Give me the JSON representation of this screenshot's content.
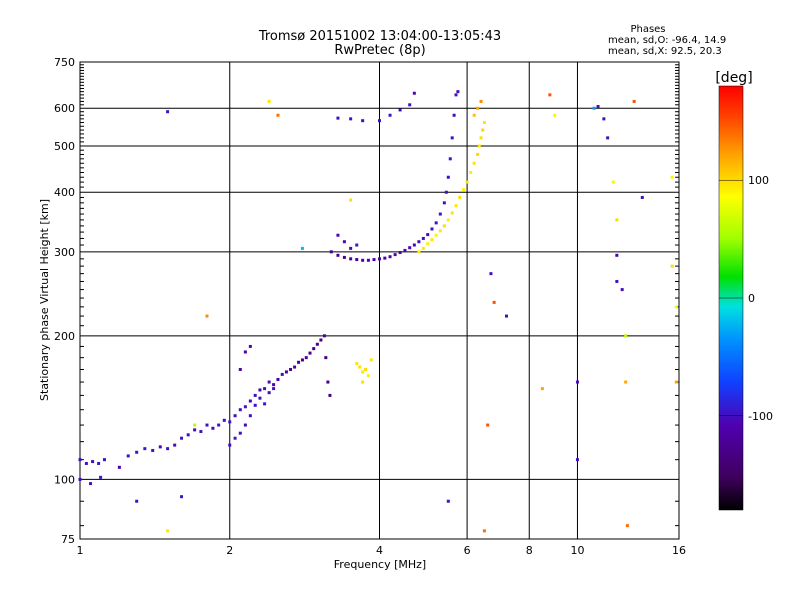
{
  "title": {
    "line1": "Tromsø 20151002 13:04:00-13:05:43",
    "line2": "RwPretec (8p)"
  },
  "stats": {
    "heading": "Phases",
    "line_o": "mean, sd,O: -96.4, 14.9",
    "line_x": "mean, sd,X:  92.5, 20.3"
  },
  "colorbar": {
    "label": "[deg]",
    "ticks": [
      {
        "value": 100,
        "label": "100"
      },
      {
        "value": 0,
        "label": "0"
      },
      {
        "value": -100,
        "label": "-100"
      }
    ],
    "range": [
      -180,
      180
    ]
  },
  "chart_data": {
    "type": "scatter",
    "title": "Tromsø 20151002 13:04:00-13:05:43",
    "subtitle": "RwPretec (8p)",
    "xlabel": "Frequency [MHz]",
    "ylabel": "Stationary phase Virtual Height [km]",
    "xscale": "log",
    "yscale": "log",
    "xlim": [
      1,
      16
    ],
    "ylim": [
      75,
      750
    ],
    "xticks": [
      {
        "value": 1,
        "label": "1"
      },
      {
        "value": 2,
        "label": "2"
      },
      {
        "value": 4,
        "label": "4"
      },
      {
        "value": 6,
        "label": "6"
      },
      {
        "value": 8,
        "label": "8"
      },
      {
        "value": 10,
        "label": "10"
      },
      {
        "value": 16,
        "label": "16"
      }
    ],
    "yticks": [
      {
        "value": 75,
        "label": "75"
      },
      {
        "value": 100,
        "label": "100"
      },
      {
        "value": 200,
        "label": "200"
      },
      {
        "value": 300,
        "label": "300"
      },
      {
        "value": 400,
        "label": "400"
      },
      {
        "value": 500,
        "label": "500"
      },
      {
        "value": 600,
        "label": "600"
      },
      {
        "value": 750,
        "label": "750"
      }
    ],
    "grid": true,
    "color_by": "phase [deg]",
    "series": [
      {
        "points": [
          [
            1.0,
            110,
            -100
          ],
          [
            1.03,
            108,
            -98
          ],
          [
            1.06,
            109,
            -102
          ],
          [
            1.09,
            108,
            -96
          ],
          [
            1.12,
            110,
            -100
          ],
          [
            1.0,
            100,
            -104
          ],
          [
            1.05,
            98,
            -100
          ],
          [
            1.1,
            101,
            -96
          ],
          [
            1.2,
            106,
            -110
          ],
          [
            1.25,
            112,
            -100
          ],
          [
            1.3,
            114,
            -98
          ],
          [
            1.35,
            116,
            -96
          ],
          [
            1.4,
            115,
            -100
          ],
          [
            1.45,
            117,
            -104
          ],
          [
            1.5,
            116,
            -98
          ],
          [
            1.55,
            118,
            -100
          ],
          [
            1.6,
            122,
            -96
          ],
          [
            1.65,
            124,
            -100
          ],
          [
            1.7,
            127,
            -102
          ],
          [
            1.75,
            126,
            -98
          ],
          [
            1.8,
            130,
            -100
          ],
          [
            1.85,
            128,
            -104
          ],
          [
            1.9,
            130,
            -96
          ],
          [
            1.95,
            133,
            -100
          ],
          [
            2.0,
            132,
            -98
          ],
          [
            2.05,
            136,
            -102
          ],
          [
            2.1,
            140,
            -100
          ],
          [
            2.15,
            142,
            -96
          ],
          [
            2.2,
            146,
            -104
          ],
          [
            2.25,
            150,
            -100
          ],
          [
            2.3,
            154,
            -112
          ],
          [
            2.35,
            155,
            -98
          ],
          [
            2.4,
            160,
            -104
          ],
          [
            2.45,
            158,
            -110
          ],
          [
            2.5,
            162,
            -118
          ],
          [
            2.55,
            166,
            -100
          ],
          [
            2.6,
            168,
            -114
          ],
          [
            2.65,
            170,
            -122
          ],
          [
            2.7,
            172,
            -110
          ],
          [
            2.75,
            176,
            -124
          ],
          [
            2.8,
            178,
            -130
          ],
          [
            2.85,
            180,
            -116
          ],
          [
            2.9,
            184,
            -128
          ],
          [
            2.95,
            188,
            -134
          ],
          [
            3.0,
            192,
            -120
          ],
          [
            3.05,
            196,
            -132
          ],
          [
            3.1,
            200,
            -118
          ],
          [
            3.12,
            180,
            -136
          ],
          [
            3.15,
            160,
            -130
          ],
          [
            3.18,
            150,
            -132
          ],
          [
            2.0,
            118,
            -100
          ],
          [
            2.05,
            122,
            -96
          ],
          [
            2.1,
            125,
            -100
          ],
          [
            2.15,
            130,
            -104
          ],
          [
            2.2,
            136,
            -100
          ],
          [
            2.25,
            143,
            -98
          ],
          [
            2.3,
            148,
            -100
          ],
          [
            2.35,
            144,
            -96
          ],
          [
            2.4,
            152,
            -102
          ],
          [
            2.45,
            155,
            -100
          ],
          [
            2.1,
            170,
            -110
          ],
          [
            2.15,
            185,
            -108
          ],
          [
            2.2,
            190,
            -104
          ],
          [
            3.2,
            300,
            -130
          ],
          [
            3.3,
            295,
            -128
          ],
          [
            3.4,
            292,
            -124
          ],
          [
            3.5,
            290,
            -120
          ],
          [
            3.6,
            289,
            -116
          ],
          [
            3.7,
            288,
            -118
          ],
          [
            3.8,
            288,
            -114
          ],
          [
            3.9,
            289,
            -112
          ],
          [
            4.0,
            290,
            -110
          ],
          [
            4.1,
            291,
            -112
          ],
          [
            4.2,
            293,
            -108
          ],
          [
            4.3,
            296,
            -106
          ],
          [
            4.4,
            299,
            -110
          ],
          [
            4.5,
            302,
            -104
          ],
          [
            4.6,
            306,
            -108
          ],
          [
            4.7,
            310,
            -104
          ],
          [
            4.8,
            315,
            -100
          ],
          [
            4.9,
            320,
            -102
          ],
          [
            5.0,
            326,
            -100
          ],
          [
            5.1,
            335,
            -98
          ],
          [
            5.2,
            345,
            -100
          ],
          [
            5.3,
            360,
            -96
          ],
          [
            5.4,
            380,
            -100
          ],
          [
            5.45,
            400,
            -98
          ],
          [
            5.5,
            430,
            -100
          ],
          [
            5.55,
            470,
            -96
          ],
          [
            5.6,
            520,
            -100
          ],
          [
            5.65,
            580,
            -102
          ],
          [
            5.7,
            640,
            -98
          ],
          [
            5.75,
            650,
            -100
          ],
          [
            3.3,
            325,
            -106
          ],
          [
            3.4,
            315,
            -104
          ],
          [
            3.5,
            305,
            -102
          ],
          [
            3.6,
            310,
            -98
          ],
          [
            3.3,
            572,
            -100
          ],
          [
            3.5,
            570,
            -98
          ],
          [
            3.7,
            565,
            -102
          ],
          [
            4.0,
            565,
            -100
          ],
          [
            4.2,
            580,
            -96
          ],
          [
            4.4,
            595,
            -100
          ],
          [
            4.6,
            610,
            -98
          ],
          [
            4.7,
            645,
            -104
          ]
        ]
      },
      {
        "points": [
          [
            3.6,
            175,
            95
          ],
          [
            3.65,
            172,
            98
          ],
          [
            3.7,
            168,
            94
          ],
          [
            3.75,
            170,
            100
          ],
          [
            3.8,
            165,
            92
          ],
          [
            3.85,
            178,
            96
          ],
          [
            3.7,
            160,
            98
          ],
          [
            4.8,
            300,
            90
          ],
          [
            4.9,
            305,
            95
          ],
          [
            5.0,
            312,
            92
          ],
          [
            5.1,
            318,
            96
          ],
          [
            5.2,
            325,
            90
          ],
          [
            5.3,
            332,
            94
          ],
          [
            5.4,
            340,
            98
          ],
          [
            5.5,
            350,
            92
          ],
          [
            5.6,
            362,
            96
          ],
          [
            5.7,
            375,
            94
          ],
          [
            5.8,
            390,
            98
          ],
          [
            5.9,
            405,
            90
          ],
          [
            6.0,
            420,
            95
          ],
          [
            6.1,
            440,
            92
          ],
          [
            6.2,
            460,
            96
          ],
          [
            6.3,
            480,
            100
          ],
          [
            6.35,
            500,
            94
          ],
          [
            6.4,
            520,
            98
          ],
          [
            6.45,
            540,
            102
          ],
          [
            6.5,
            560,
            96
          ],
          [
            6.2,
            580,
            110
          ],
          [
            6.3,
            600,
            120
          ],
          [
            6.4,
            620,
            130
          ]
        ]
      },
      {
        "points": [
          [
            1.5,
            590,
            -100
          ],
          [
            2.4,
            620,
            95
          ],
          [
            1.3,
            90,
            -100
          ],
          [
            1.5,
            78,
            95
          ],
          [
            1.6,
            92,
            -98
          ],
          [
            1.7,
            130,
            60
          ],
          [
            1.8,
            220,
            130
          ],
          [
            2.5,
            580,
            140
          ],
          [
            2.8,
            305,
            -20
          ],
          [
            3.5,
            385,
            98
          ],
          [
            5.5,
            90,
            -100
          ],
          [
            6.5,
            78,
            140
          ],
          [
            6.6,
            130,
            150
          ],
          [
            6.7,
            270,
            -100
          ],
          [
            6.8,
            235,
            150
          ],
          [
            7.2,
            220,
            -100
          ],
          [
            8.5,
            155,
            120
          ],
          [
            8.8,
            640,
            150
          ],
          [
            9.0,
            580,
            90
          ],
          [
            10.0,
            160,
            -100
          ],
          [
            10.0,
            110,
            -100
          ],
          [
            10.8,
            600,
            -30
          ],
          [
            11.0,
            605,
            -100
          ],
          [
            11.3,
            570,
            -100
          ],
          [
            11.5,
            520,
            -100
          ],
          [
            11.8,
            420,
            90
          ],
          [
            12.0,
            350,
            100
          ],
          [
            12.0,
            295,
            -110
          ],
          [
            12.0,
            260,
            -100
          ],
          [
            12.3,
            250,
            -100
          ],
          [
            12.5,
            200,
            60
          ],
          [
            12.5,
            160,
            120
          ],
          [
            12.6,
            80,
            140
          ],
          [
            13.0,
            620,
            150
          ],
          [
            13.5,
            390,
            -100
          ],
          [
            15.5,
            430,
            90
          ],
          [
            15.5,
            280,
            100
          ],
          [
            15.8,
            230,
            80
          ],
          [
            15.8,
            160,
            120
          ]
        ]
      }
    ]
  }
}
